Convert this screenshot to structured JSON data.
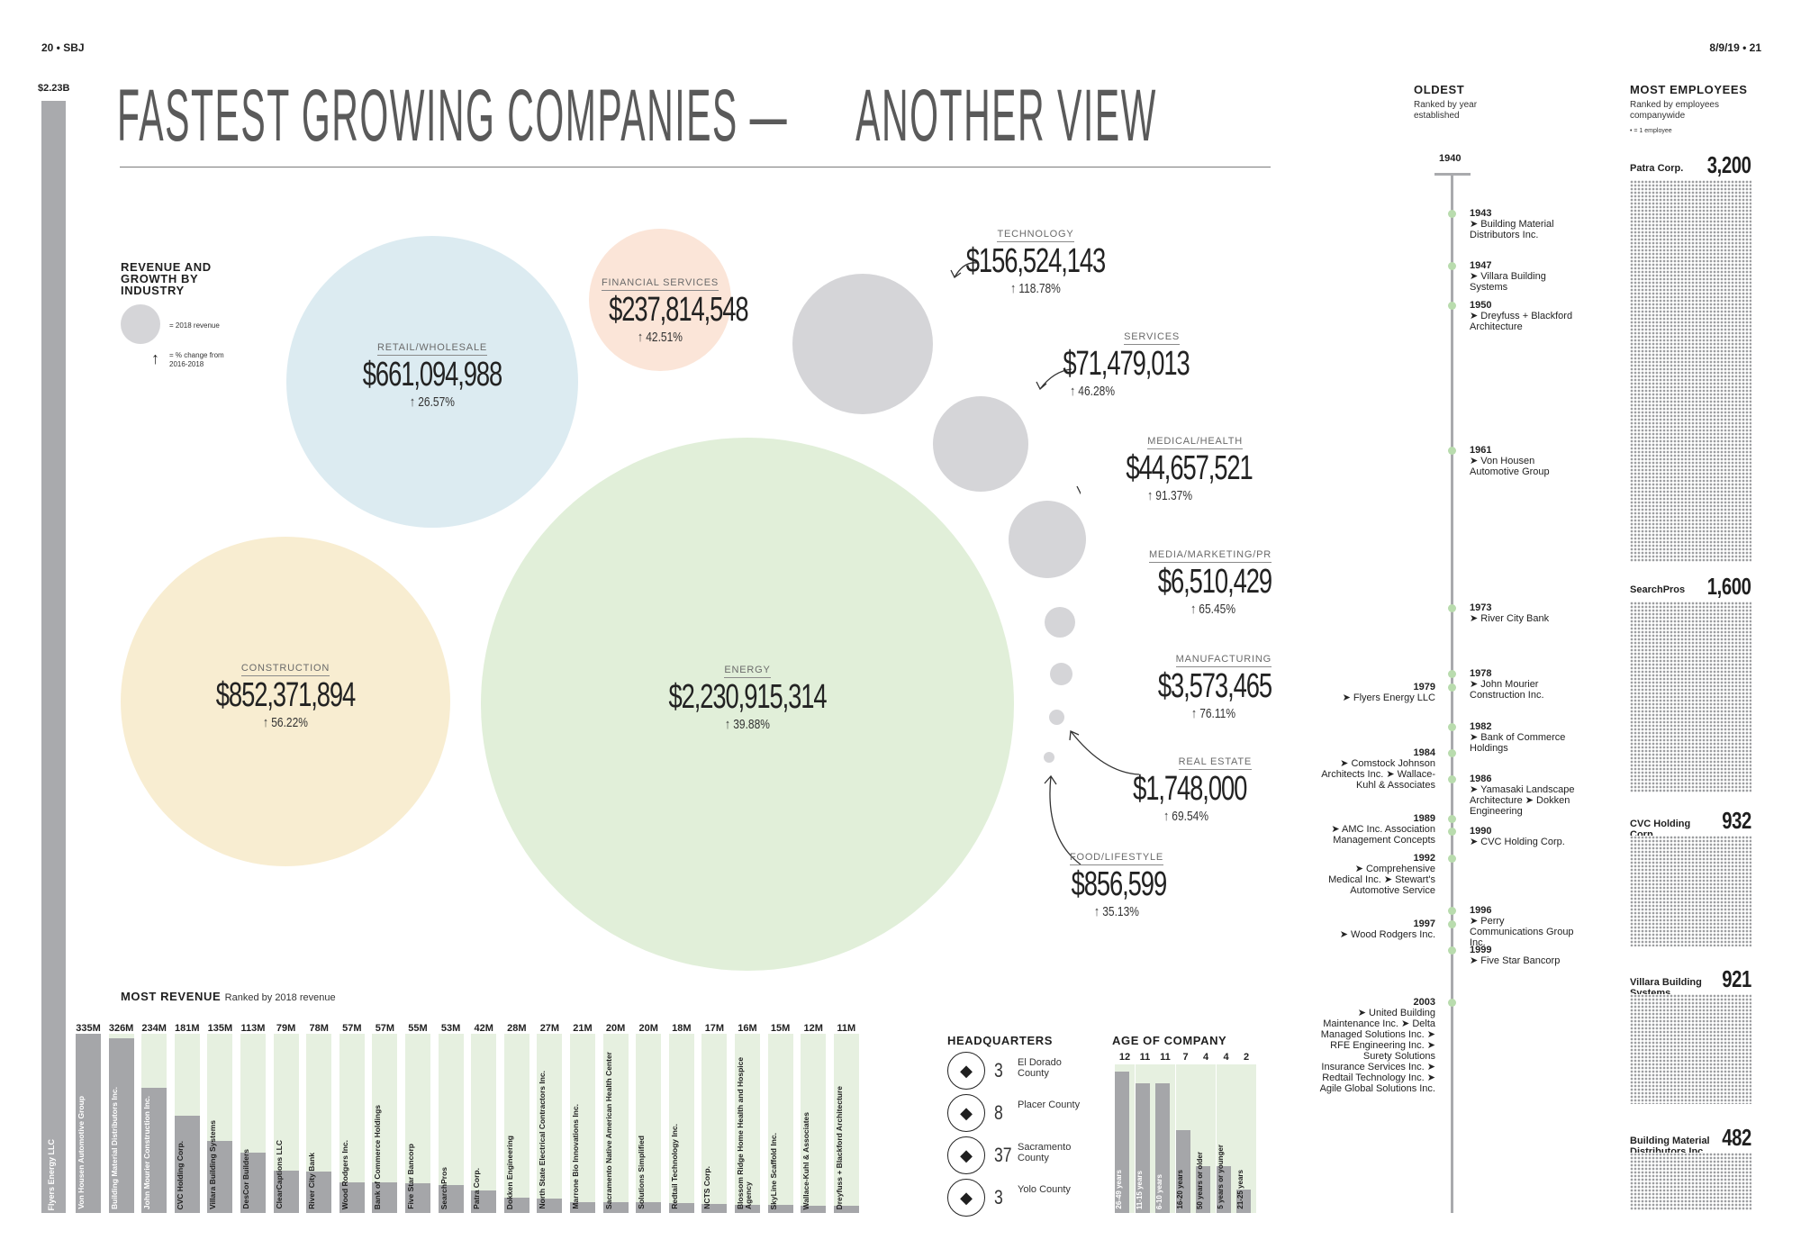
{
  "folio": {
    "left": "20 • SBJ",
    "right": "8/9/19 • 21"
  },
  "title_left": "FASTEST GROWING COMPANIES —",
  "title_right": "ANOTHER VIEW",
  "total_label": "$2.23B",
  "legend": {
    "title": "REVENUE AND GROWTH BY INDUSTRY",
    "circle_text": "= 2018 revenue",
    "arrow_text": "= % change from 2016-2018"
  },
  "colors": {
    "retail": "#dcebf1",
    "financial": "#fbe5d8",
    "construction": "#f8edd1",
    "energy": "#e1efd9",
    "gray_bubble": "#d5d5d8",
    "bar": "#a5a6a9",
    "bar_bg": "#e6f0e0",
    "timeline_dot": "#b9dcae"
  },
  "chart_data": [
    {
      "type": "bubble",
      "title": "REVENUE AND GROWTH BY INDUSTRY",
      "categories": [
        "ENERGY",
        "CONSTRUCTION",
        "RETAIL/WHOLESALE",
        "FINANCIAL SERVICES",
        "TECHNOLOGY",
        "SERVICES",
        "MEDICAL/HEALTH",
        "MEDIA/MARKETING/PR",
        "MANUFACTURING",
        "REAL ESTATE",
        "FOOD/LIFESTYLE"
      ],
      "revenue": [
        2230915314,
        852371894,
        661094988,
        237814548,
        156524143,
        71479013,
        44657521,
        6510429,
        3573465,
        1748000,
        856599
      ],
      "revenue_label": [
        "$2,230,915,314",
        "$852,371,894",
        "$661,094,988",
        "$237,814,548",
        "$156,524,143",
        "$71,479,013",
        "$44,657,521",
        "$6,510,429",
        "$3,573,465",
        "$1,748,000",
        "$856,599"
      ],
      "growth_pct": [
        "39.88%",
        "56.22%",
        "26.57%",
        "42.51%",
        "118.78%",
        "46.28%",
        "91.37%",
        "65.45%",
        "76.11%",
        "69.54%",
        "35.13%"
      ]
    },
    {
      "type": "bar",
      "title": "MOST REVENUE",
      "subtitle": "Ranked by 2018 revenue",
      "total_label": "$2.23B",
      "total_company": "Flyers Energy LLC",
      "categories": [
        "Von Housen Automotive Group",
        "Building Material Distributors Inc.",
        "John Mourier Construction Inc.",
        "CVC Holding Corp.",
        "Villara Building Systems",
        "DesCor Builders",
        "ClearCaptions LLC",
        "River City Bank",
        "Wood Rodgers Inc.",
        "Bank of Commerce Holdings",
        "Five Star Bancorp",
        "SearchPros",
        "Patra Corp.",
        "Dokken Engineering",
        "North State Electrical Contractors Inc.",
        "Marrone Bio Innovations Inc.",
        "Sacramento Native American Health Center",
        "Solutions Simplified",
        "Redtail Technology Inc.",
        "NCTS Corp.",
        "Blossom Ridge Home Health and Hospice Agency",
        "SkyLine Scaffold Inc.",
        "Wallace-Kuhl & Associates",
        "Dreyfuss + Blackford Architecture"
      ],
      "values": [
        335,
        326,
        234,
        181,
        135,
        113,
        79,
        78,
        57,
        57,
        55,
        53,
        42,
        28,
        27,
        21,
        20,
        20,
        18,
        17,
        16,
        15,
        12,
        11
      ],
      "value_labels": [
        "335M",
        "326M",
        "234M",
        "181M",
        "135M",
        "113M",
        "79M",
        "78M",
        "57M",
        "57M",
        "55M",
        "53M",
        "42M",
        "28M",
        "27M",
        "21M",
        "20M",
        "20M",
        "18M",
        "17M",
        "16M",
        "15M",
        "12M",
        "11M"
      ],
      "unit": "M"
    },
    {
      "type": "table",
      "title": "HEADQUARTERS",
      "rows": [
        {
          "count": "3",
          "name": "El Dorado County"
        },
        {
          "count": "8",
          "name": "Placer County"
        },
        {
          "count": "37",
          "name": "Sacramento County"
        },
        {
          "count": "3",
          "name": "Yolo County"
        }
      ]
    },
    {
      "type": "bar",
      "title": "AGE OF COMPANY",
      "categories": [
        "26-49 years",
        "11-15 years",
        "6-10 years",
        "16-20 years",
        "50 years or older",
        "5 years or younger",
        "21-25 years"
      ],
      "values": [
        12,
        11,
        11,
        7,
        4,
        4,
        2
      ]
    },
    {
      "type": "timeline",
      "title": "OLDEST",
      "subtitle": "Ranked by year established",
      "start": "1940",
      "right_entries": [
        {
          "year": "1943",
          "names": "➤ Building Material Distributors Inc."
        },
        {
          "year": "1947",
          "names": "➤ Villara Building Systems"
        },
        {
          "year": "1950",
          "names": "➤ Dreyfuss + Blackford Architecture"
        },
        {
          "year": "1961",
          "names": "➤ Von Housen Automotive Group"
        },
        {
          "year": "1973",
          "names": "➤ River City Bank"
        },
        {
          "year": "1978",
          "names": "➤ John Mourier Construction Inc."
        },
        {
          "year": "1982",
          "names": "➤ Bank of Commerce Holdings"
        },
        {
          "year": "1986",
          "names": "➤ Yamasaki Landscape Architecture ➤ Dokken Engineering"
        },
        {
          "year": "1990",
          "names": "➤ CVC Holding Corp."
        },
        {
          "year": "1996",
          "names": "➤ Perry Communications Group Inc."
        },
        {
          "year": "1999",
          "names": "➤ Five Star Bancorp"
        }
      ],
      "left_entries": [
        {
          "year": "1979",
          "names": "➤ Flyers Energy LLC"
        },
        {
          "year": "1984",
          "names": "➤ Comstock Johnson Architects Inc. ➤ Wallace-Kuhl & Associates"
        },
        {
          "year": "1989",
          "names": "➤ AMC Inc. Association Management Concepts"
        },
        {
          "year": "1992",
          "names": "➤ Comprehensive Medical Inc. ➤ Stewart's Automotive Service"
        },
        {
          "year": "1997",
          "names": "➤ Wood Rodgers Inc."
        },
        {
          "year": "2003",
          "names": "➤ United Building Maintenance Inc. ➤ Delta Managed Solutions Inc. ➤ RFE Engineering Inc. ➤ Surety Solutions Insurance Services Inc. ➤ Redtail Technology Inc. ➤ Agile Global Solutions Inc."
        }
      ]
    },
    {
      "type": "bar",
      "title": "MOST EMPLOYEES",
      "subtitle": "Ranked by employees companywide",
      "note": "• = 1 employee",
      "categories": [
        "Patra Corp.",
        "SearchPros",
        "CVC Holding Corp.",
        "Villara Building Systems",
        "Building Material Distributors Inc."
      ],
      "values": [
        3200,
        1600,
        932,
        921,
        482
      ],
      "value_labels": [
        "3,200",
        "1,600",
        "932",
        "921",
        "482"
      ]
    }
  ]
}
